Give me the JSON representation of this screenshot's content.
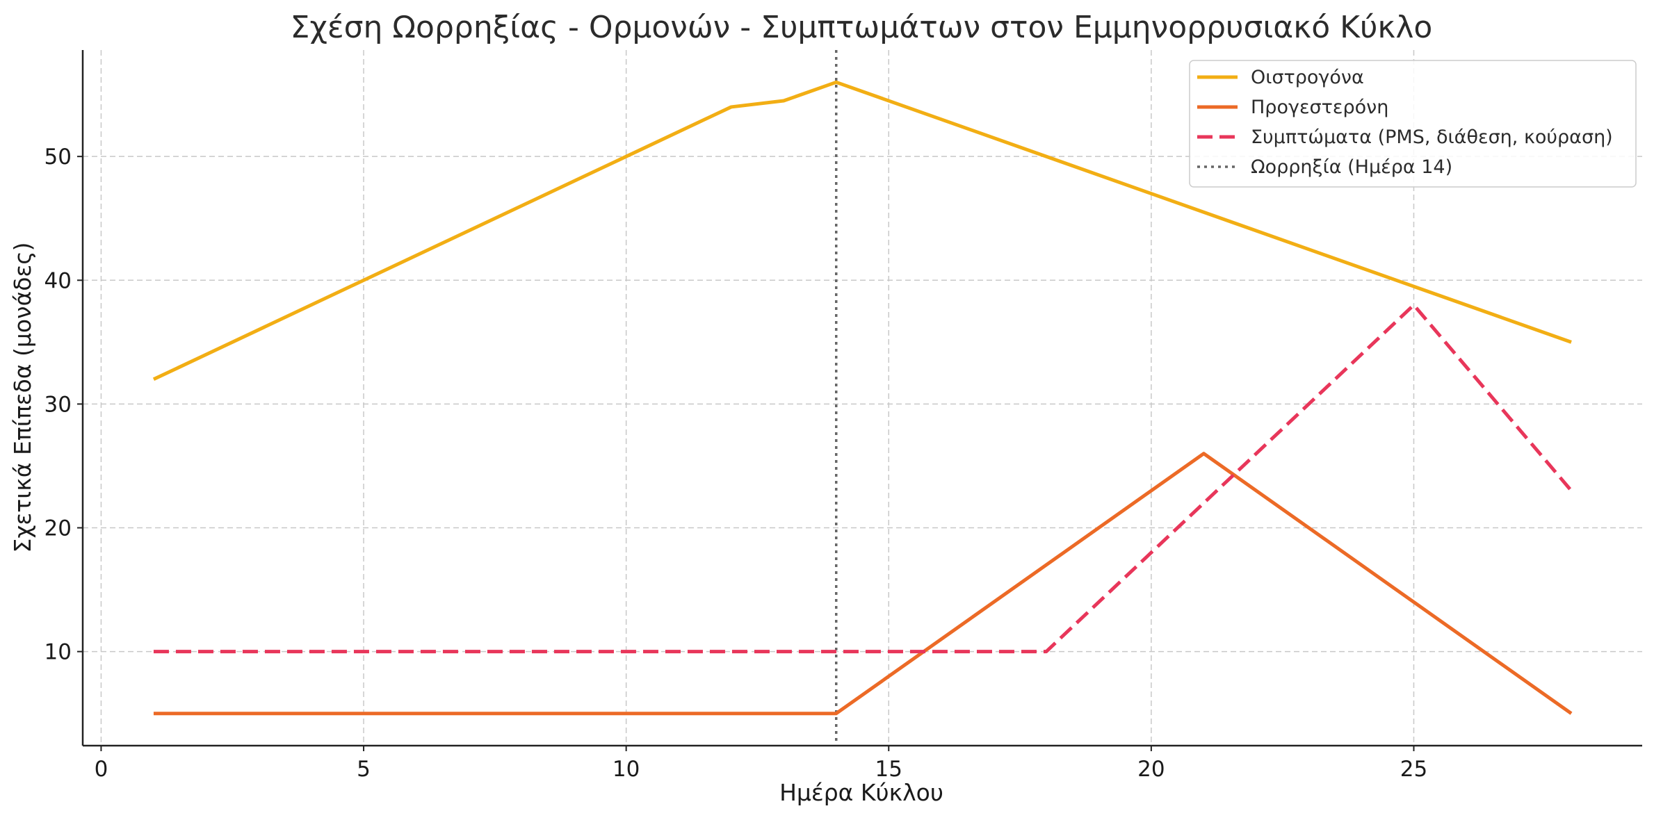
{
  "chart_data": {
    "type": "line",
    "title": "Σχέση Ωορρηξίας - Ορμονών - Συμπτωμάτων στον Εμμηνορρυσιακό Κύκλο",
    "xlabel": "Ημέρα Κύκλου",
    "ylabel": "Σχετικά Επίπεδα (μονάδες)",
    "xlim": [
      -0.35,
      29.35
    ],
    "ylim": [
      2.4,
      58.6
    ],
    "xticks": [
      0,
      5,
      10,
      15,
      20,
      25
    ],
    "yticks": [
      10,
      20,
      30,
      40,
      50
    ],
    "grid": true,
    "legend_position": "top-right",
    "series": [
      {
        "name": "Οιστρογόνα",
        "color": "#F2AE14",
        "style": "solid",
        "x": [
          1,
          12,
          13,
          14,
          28
        ],
        "values": [
          32,
          54,
          54.5,
          56,
          35
        ]
      },
      {
        "name": "Προγεστερόνη",
        "color": "#EC6A26",
        "style": "solid",
        "x": [
          1,
          14,
          21,
          28
        ],
        "values": [
          5,
          5,
          26,
          5
        ]
      },
      {
        "name": "Συμπτώματα (PMS, διάθεση, κούραση)",
        "color": "#E8365A",
        "style": "dashed",
        "x": [
          1,
          18,
          25,
          28
        ],
        "values": [
          10,
          10,
          38,
          23
        ]
      }
    ],
    "vlines": [
      {
        "name": "Ωορρηξία (Ημέρα 14)",
        "x": 14,
        "color": "#666666",
        "style": "dotted"
      }
    ]
  }
}
